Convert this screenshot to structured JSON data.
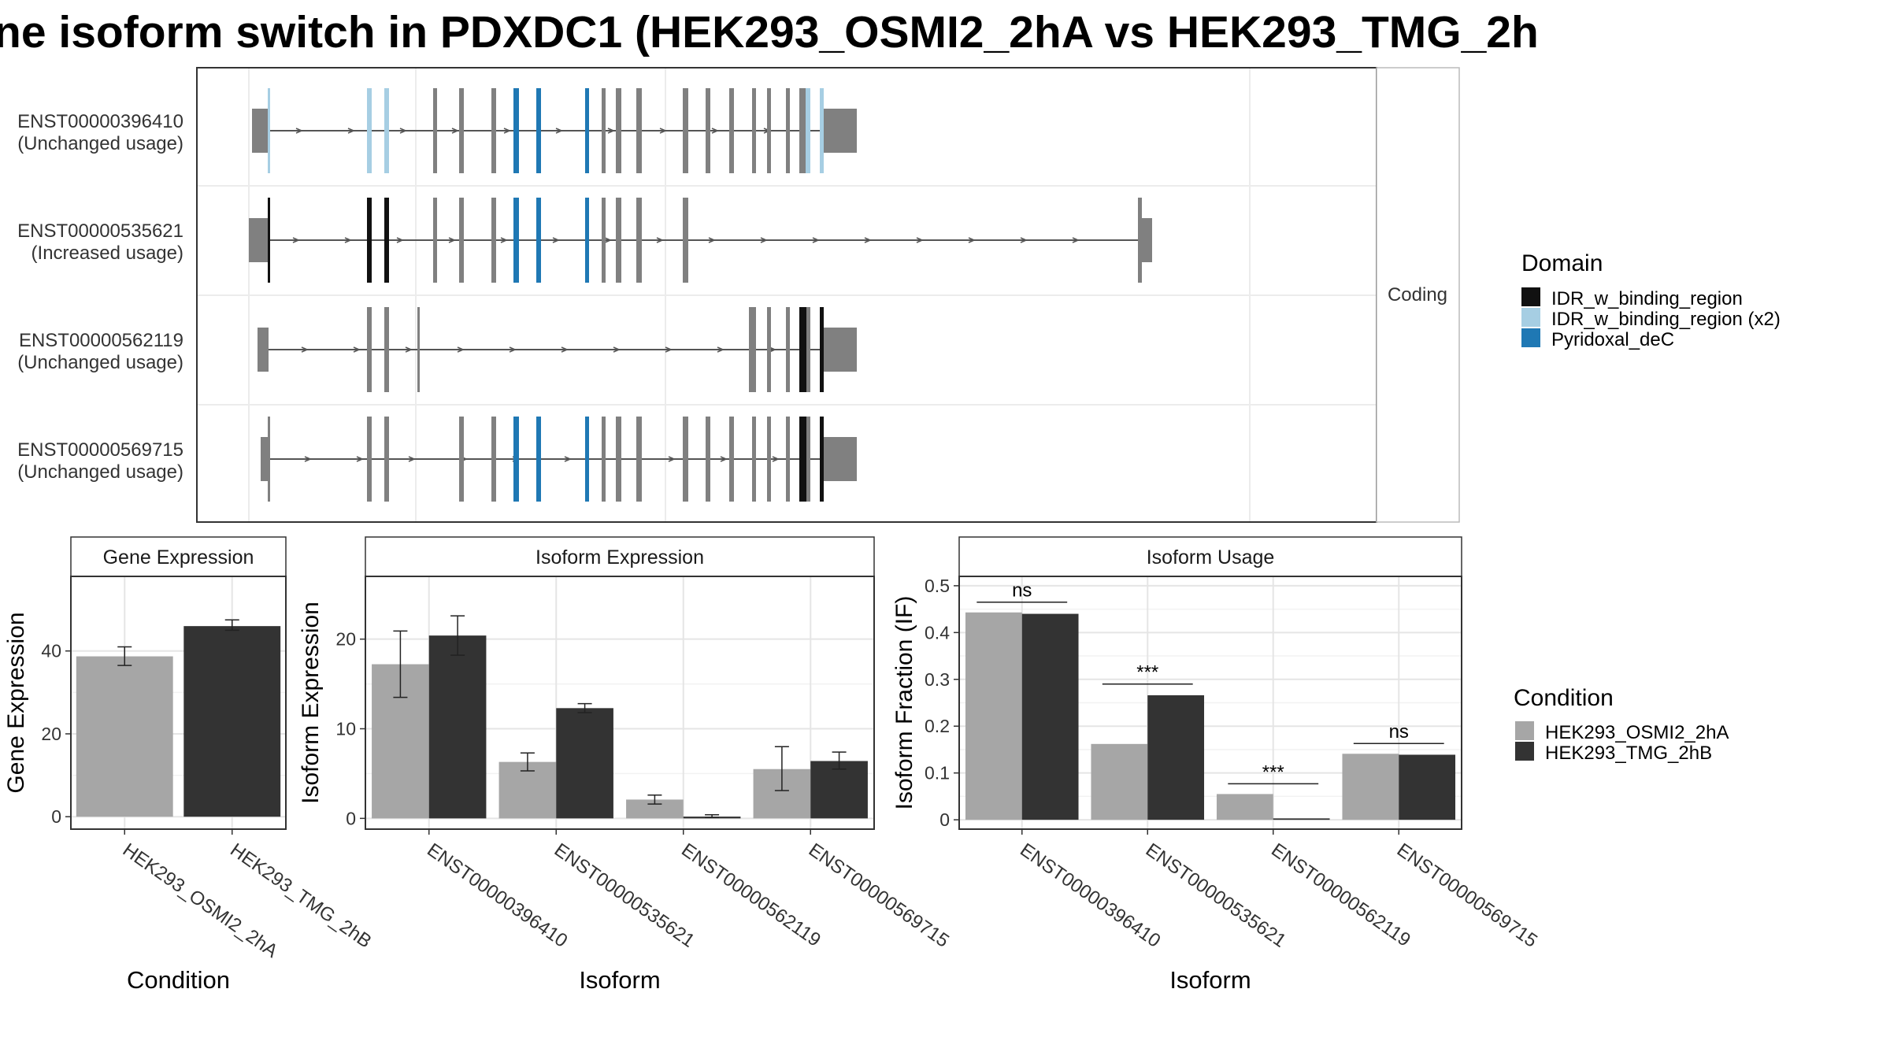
{
  "title": "ne isoform switch in PDXDC1 (HEK293_OSMI2_2hA vs HEK293_TMG_2h",
  "colors": {
    "exon": "#808080",
    "intron": "#555555",
    "cond_a": "#a6a6a6",
    "cond_b": "#333333",
    "IDR_w_binding_region": "#111111",
    "IDR_w_binding_region_x2": "#a6cee3",
    "Pyridoxal_deC": "#1f78b4"
  },
  "structure": {
    "facet_label": "Coding",
    "isoforms": [
      {
        "id": "ENST00000396410",
        "usage": "(Unchanged usage)",
        "start_utr": [
          0,
          20
        ],
        "start_thin": [
          20,
          22
        ],
        "exons": [
          [
            20,
            22
          ],
          [
            146,
            152
          ],
          [
            168,
            174
          ],
          [
            230,
            235
          ],
          [
            263,
            269
          ],
          [
            304,
            310
          ],
          [
            332,
            334
          ],
          [
            334,
            339
          ],
          [
            361,
            367
          ],
          [
            423,
            428
          ],
          [
            444,
            449
          ],
          [
            462,
            469
          ],
          [
            488,
            495
          ],
          [
            547,
            554
          ],
          [
            576,
            582
          ],
          [
            606,
            612
          ],
          [
            635,
            640
          ],
          [
            654,
            659
          ],
          [
            678,
            683
          ],
          [
            695,
            704
          ],
          [
            703,
            709
          ],
          [
            721,
            726
          ]
        ],
        "end_utr": [
          726,
          768
        ],
        "domains": [
          {
            "type": "IDR_w_binding_region_x2",
            "range": [
              20,
              22
            ]
          },
          {
            "type": "IDR_w_binding_region_x2",
            "range": [
              146,
              152
            ]
          },
          {
            "type": "IDR_w_binding_region_x2",
            "range": [
              168,
              174
            ]
          },
          {
            "type": "Pyridoxal_deC",
            "range": [
              332,
              339
            ]
          },
          {
            "type": "Pyridoxal_deC",
            "range": [
              361,
              367
            ]
          },
          {
            "type": "Pyridoxal_deC",
            "range": [
              423,
              428
            ]
          },
          {
            "type": "IDR_w_binding_region_x2",
            "range": [
              703,
              709
            ]
          },
          {
            "type": "IDR_w_binding_region_x2",
            "range": [
              721,
              726
            ]
          }
        ]
      },
      {
        "id": "ENST00000535621",
        "usage": "(Increased usage)",
        "start_utr": [
          -4,
          20
        ],
        "start_thin": [
          20,
          22
        ],
        "exons": [
          [
            20,
            22
          ],
          [
            146,
            152
          ],
          [
            168,
            174
          ],
          [
            230,
            235
          ],
          [
            263,
            269
          ],
          [
            304,
            310
          ],
          [
            332,
            334
          ],
          [
            334,
            339
          ],
          [
            361,
            367
          ],
          [
            423,
            428
          ],
          [
            444,
            449
          ],
          [
            462,
            469
          ],
          [
            488,
            495
          ],
          [
            547,
            554
          ]
        ],
        "end_utr": [
          1125,
          1130
        ],
        "end_thick": [
          1130,
          1143
        ],
        "domains": [
          {
            "type": "IDR_w_binding_region",
            "range": [
              20,
              22
            ]
          },
          {
            "type": "IDR_w_binding_region",
            "range": [
              146,
              152
            ]
          },
          {
            "type": "IDR_w_binding_region",
            "range": [
              168,
              174
            ]
          },
          {
            "type": "Pyridoxal_deC",
            "range": [
              332,
              339
            ]
          },
          {
            "type": "Pyridoxal_deC",
            "range": [
              361,
              367
            ]
          },
          {
            "type": "Pyridoxal_deC",
            "range": [
              423,
              428
            ]
          }
        ]
      },
      {
        "id": "ENST00000562119",
        "usage": "(Unchanged usage)",
        "start_utr": [
          7,
          21
        ],
        "exons": [
          [
            146,
            152
          ],
          [
            168,
            174
          ],
          [
            210,
            211
          ],
          [
            631,
            636
          ],
          [
            635,
            640
          ],
          [
            654,
            659
          ],
          [
            678,
            683
          ],
          [
            695,
            704
          ],
          [
            703,
            709
          ],
          [
            721,
            726
          ]
        ],
        "end_utr": [
          726,
          768
        ],
        "domains": [
          {
            "type": "IDR_w_binding_region",
            "range": [
              695,
              704
            ]
          },
          {
            "type": "IDR_w_binding_region",
            "range": [
              721,
              726
            ]
          }
        ]
      },
      {
        "id": "ENST00000569715",
        "usage": "(Unchanged usage)",
        "start_utr": [
          11,
          20
        ],
        "start_thin": [
          20,
          22
        ],
        "exons": [
          [
            20,
            22
          ],
          [
            146,
            152
          ],
          [
            168,
            174
          ],
          [
            263,
            269
          ],
          [
            304,
            310
          ],
          [
            332,
            334
          ],
          [
            334,
            339
          ],
          [
            361,
            367
          ],
          [
            423,
            428
          ],
          [
            444,
            449
          ],
          [
            462,
            469
          ],
          [
            488,
            495
          ],
          [
            547,
            554
          ],
          [
            576,
            582
          ],
          [
            606,
            612
          ],
          [
            635,
            640
          ],
          [
            654,
            659
          ],
          [
            678,
            683
          ],
          [
            695,
            704
          ],
          [
            703,
            709
          ],
          [
            721,
            726
          ]
        ],
        "end_utr": [
          726,
          768
        ],
        "domains": [
          {
            "type": "IDR_w_binding_region",
            "range": [
              695,
              704
            ]
          },
          {
            "type": "IDR_w_binding_region",
            "range": [
              721,
              726
            ]
          },
          {
            "type": "Pyridoxal_deC",
            "range": [
              332,
              339
            ]
          },
          {
            "type": "Pyridoxal_deC",
            "range": [
              361,
              367
            ]
          },
          {
            "type": "Pyridoxal_deC",
            "range": [
              423,
              428
            ]
          }
        ]
      }
    ]
  },
  "legend_domain": {
    "title": "Domain",
    "items": [
      {
        "label": "IDR_w_binding_region",
        "color": "#111111"
      },
      {
        "label": "IDR_w_binding_region (x2)",
        "color": "#a6cee3"
      },
      {
        "label": "Pyridoxal_deC",
        "color": "#1f78b4"
      }
    ]
  },
  "legend_condition": {
    "title": "Condition",
    "items": [
      {
        "label": "HEK293_OSMI2_2hA",
        "color": "#a6a6a6"
      },
      {
        "label": "HEK293_TMG_2hB",
        "color": "#333333"
      }
    ]
  },
  "chart_data": [
    {
      "type": "bar",
      "title": "Gene Expression",
      "xlabel": "Condition",
      "ylabel": "Gene Expression",
      "categories": [
        "HEK293_OSMI2_2hA",
        "HEK293_TMG_2hB"
      ],
      "values": [
        38.7,
        46.0
      ],
      "error_low": [
        36.5,
        45.0
      ],
      "error_high": [
        41.0,
        47.5
      ],
      "ylim": [
        -3,
        58
      ],
      "yticks": [
        0,
        20,
        40
      ],
      "grid": true
    },
    {
      "type": "bar",
      "title": "Isoform Expression",
      "xlabel": "Isoform",
      "ylabel": "Isoform Expression",
      "categories": [
        "ENST00000396410",
        "ENST00000535621",
        "ENST00000562119",
        "ENST00000569715"
      ],
      "series": [
        {
          "name": "HEK293_OSMI2_2hA",
          "values": [
            17.2,
            6.3,
            2.1,
            5.5
          ],
          "error_low": [
            13.5,
            5.3,
            1.6,
            3.1
          ],
          "error_high": [
            20.9,
            7.3,
            2.6,
            8.0
          ]
        },
        {
          "name": "HEK293_TMG_2hB",
          "values": [
            20.4,
            12.3,
            0.2,
            6.4
          ],
          "error_low": [
            18.2,
            11.8,
            0.1,
            5.5
          ],
          "error_high": [
            22.6,
            12.8,
            0.4,
            7.4
          ]
        }
      ],
      "ylim": [
        -1.2,
        27
      ],
      "yticks": [
        0,
        10,
        20
      ],
      "grid": true
    },
    {
      "type": "bar",
      "title": "Isoform Usage",
      "xlabel": "Isoform",
      "ylabel": "Isoform Fraction (IF)",
      "categories": [
        "ENST00000396410",
        "ENST00000535621",
        "ENST00000562119",
        "ENST00000569715"
      ],
      "series": [
        {
          "name": "HEK293_OSMI2_2hA",
          "values": [
            0.443,
            0.162,
            0.055,
            0.141
          ]
        },
        {
          "name": "HEK293_TMG_2hB",
          "values": [
            0.44,
            0.266,
            0.003,
            0.139
          ]
        }
      ],
      "significance": [
        {
          "label": "ns",
          "y": 0.465
        },
        {
          "label": "***",
          "y": 0.29
        },
        {
          "label": "***",
          "y": 0.077
        },
        {
          "label": "ns",
          "y": 0.163
        }
      ],
      "ylim": [
        -0.02,
        0.52
      ],
      "yticks": [
        0.0,
        0.1,
        0.2,
        0.3,
        0.4,
        0.5
      ],
      "grid": true
    }
  ]
}
